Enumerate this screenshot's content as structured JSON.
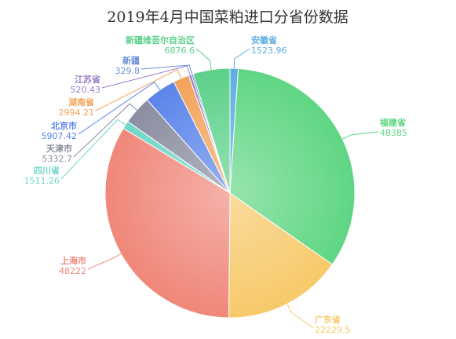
{
  "chart_data": {
    "type": "pie",
    "title": "2019年4月中国菜粕进口分省份数据",
    "slices": [
      {
        "name": "安徽省",
        "value": 1523.96,
        "color": "#5dade2"
      },
      {
        "name": "福建省",
        "value": 48385,
        "color": "#5fd683"
      },
      {
        "name": "广东省",
        "value": 22229.5,
        "color": "#f7c96a"
      },
      {
        "name": "上海市",
        "value": 48222,
        "color": "#f0877a"
      },
      {
        "name": "四川省",
        "value": 1511.26,
        "color": "#6fd6c8"
      },
      {
        "name": "天津市",
        "value": 5332.7,
        "color": "#8a8da0"
      },
      {
        "name": "北京市",
        "value": 5907.42,
        "color": "#5b84ea"
      },
      {
        "name": "湖南省",
        "value": 2994.21,
        "color": "#f2a35a"
      },
      {
        "name": "江苏省",
        "value": 520.43,
        "color": "#9a80c8"
      },
      {
        "name": "新疆",
        "value": 329.8,
        "color": "#6a8fd8"
      },
      {
        "name": "新疆维吾尔自治区",
        "value": 6876.6,
        "color": "#5cd18a"
      }
    ]
  }
}
